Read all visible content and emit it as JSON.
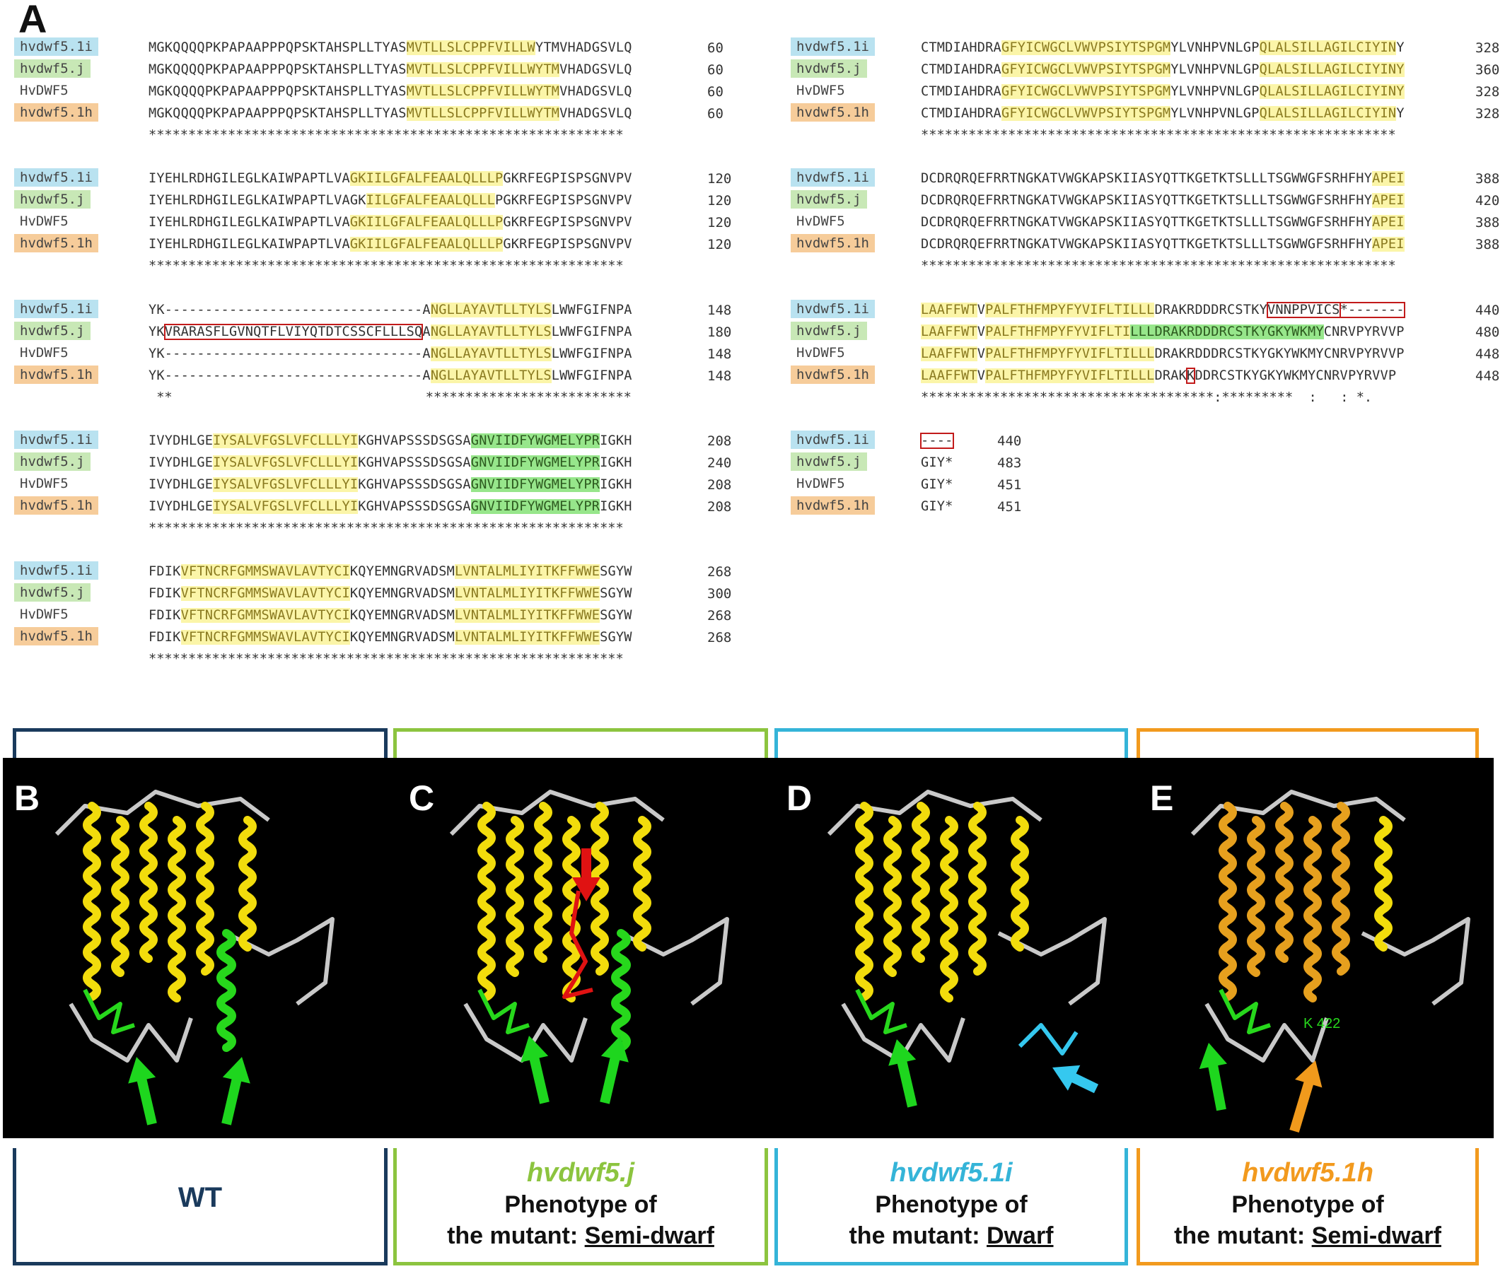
{
  "panel_letters": {
    "a": "A",
    "b": "B",
    "c": "C",
    "d": "D",
    "e": "E"
  },
  "left_blocks": [
    {
      "rows": [
        {
          "label": "hvdwf5.1i",
          "seq": [
            [
              "MGKQQQQPKPAPAAPPPQPSKTAHSPLLTYAS",
              ""
            ],
            [
              "MVTLLSLCPPFVILLW",
              "hy"
            ],
            [
              "YTMVHADGSVLQ",
              ""
            ]
          ],
          "num": "60"
        },
        {
          "label": "hvdwf5.j",
          "seq": [
            [
              "MGKQQQQPKPAPAAPPPQPSKTAHSPLLTYAS",
              ""
            ],
            [
              "MVTLLSLCPPFVILLWYTM",
              "hy"
            ],
            [
              "VHADGSVLQ",
              ""
            ]
          ],
          "num": "60"
        },
        {
          "label": "HvDWF5",
          "seq": [
            [
              "MGKQQQQPKPAPAAPPPQPSKTAHSPLLTYAS",
              ""
            ],
            [
              "MVTLLSLCPPFVILLWYTM",
              "hy"
            ],
            [
              "VHADGSVLQ",
              ""
            ]
          ],
          "num": "60"
        },
        {
          "label": "hvdwf5.1h",
          "seq": [
            [
              "MGKQQQQPKPAPAAPPPQPSKTAHSPLLTYAS",
              ""
            ],
            [
              "MVTLLSLCPPFVILLWYTM",
              "hy"
            ],
            [
              "VHADGSVLQ",
              ""
            ]
          ],
          "num": "60"
        }
      ],
      "cons": "************************************************************"
    },
    {
      "rows": [
        {
          "label": "hvdwf5.1i",
          "seq": [
            [
              "IYEHLRDHGILEGLKAIWPAPTLVA",
              ""
            ],
            [
              "GKIILGFALFEAALQLLLP",
              "hy"
            ],
            [
              "GKRFEGPISPSGNVPV",
              ""
            ]
          ],
          "num": "120"
        },
        {
          "label": "hvdwf5.j",
          "seq": [
            [
              "IYEHLRDHGILEGLKAIWPAPTLVAGK",
              ""
            ],
            [
              "IILGFALFEAALQLLL",
              "hy"
            ],
            [
              "PGKRFEGPISPSGNVPV",
              ""
            ]
          ],
          "num": "120"
        },
        {
          "label": "HvDWF5",
          "seq": [
            [
              "IYEHLRDHGILEGLKAIWPAPTLVA",
              ""
            ],
            [
              "GKIILGFALFEAALQLLLP",
              "hy"
            ],
            [
              "GKRFEGPISPSGNVPV",
              ""
            ]
          ],
          "num": "120"
        },
        {
          "label": "hvdwf5.1h",
          "seq": [
            [
              "IYEHLRDHGILEGLKAIWPAPTLVA",
              ""
            ],
            [
              "GKIILGFALFEAALQLLLP",
              "hy"
            ],
            [
              "GKRFEGPISPSGNVPV",
              ""
            ]
          ],
          "num": "120"
        }
      ],
      "cons": "************************************************************"
    },
    {
      "rows": [
        {
          "label": "hvdwf5.1i",
          "seq": [
            [
              "YK--------------------------------A",
              ""
            ],
            [
              "NGLLAYAVTLLTYLS",
              "hy"
            ],
            [
              "LWWFGIFNPA",
              ""
            ]
          ],
          "num": "148"
        },
        {
          "label": "hvdwf5.j",
          "seq": [
            [
              "YK",
              ""
            ],
            [
              "VRARASFLGVNQTFLVIYQTDTCSSCFLLLSQ",
              "boxr"
            ],
            [
              "A",
              ""
            ],
            [
              "NGLLAYAVTLLTYLS",
              "hy"
            ],
            [
              "LWWFGIFNPA",
              ""
            ]
          ],
          "num": "180"
        },
        {
          "label": "HvDWF5",
          "seq": [
            [
              "YK--------------------------------A",
              ""
            ],
            [
              "NGLLAYAVTLLTYLS",
              "hy"
            ],
            [
              "LWWFGIFNPA",
              ""
            ]
          ],
          "num": "148"
        },
        {
          "label": "hvdwf5.1h",
          "seq": [
            [
              "YK--------------------------------A",
              ""
            ],
            [
              "NGLLAYAVTLLTYLS",
              "hy"
            ],
            [
              "LWWFGIFNPA",
              ""
            ]
          ],
          "num": "148"
        }
      ],
      "cons": " **                                **************************"
    },
    {
      "rows": [
        {
          "label": "hvdwf5.1i",
          "seq": [
            [
              "IVYDHLGE",
              ""
            ],
            [
              "IYSALVFGSLVFCLLLYI",
              "hy"
            ],
            [
              "KGHVAPSSSDSGSA",
              ""
            ],
            [
              "GNVIIDFYWGMELYPR",
              "hg"
            ],
            [
              "IGKH",
              ""
            ]
          ],
          "num": "208"
        },
        {
          "label": "hvdwf5.j",
          "seq": [
            [
              "IVYDHLGE",
              ""
            ],
            [
              "IYSALVFGSLVFCLLLYI",
              "hy"
            ],
            [
              "KGHVAPSSSDSGSA",
              ""
            ],
            [
              "GNVIIDFYWGMELYPR",
              "hg"
            ],
            [
              "IGKH",
              ""
            ]
          ],
          "num": "240"
        },
        {
          "label": "HvDWF5",
          "seq": [
            [
              "IVYDHLGE",
              ""
            ],
            [
              "IYSALVFGSLVFCLLLYI",
              "hy"
            ],
            [
              "KGHVAPSSSDSGSA",
              ""
            ],
            [
              "GNVIIDFYWGMELYPR",
              "hg"
            ],
            [
              "IGKH",
              ""
            ]
          ],
          "num": "208"
        },
        {
          "label": "hvdwf5.1h",
          "seq": [
            [
              "IVYDHLGE",
              ""
            ],
            [
              "IYSALVFGSLVFCLLLYI",
              "hy"
            ],
            [
              "KGHVAPSSSDSGSA",
              ""
            ],
            [
              "GNVIIDFYWGMELYPR",
              "hg"
            ],
            [
              "IGKH",
              ""
            ]
          ],
          "num": "208"
        }
      ],
      "cons": "************************************************************"
    },
    {
      "rows": [
        {
          "label": "hvdwf5.1i",
          "seq": [
            [
              "FDIK",
              ""
            ],
            [
              "VFTNCRFGMMSWAVLAVTYCI",
              "hy"
            ],
            [
              "KQYEMNGRVADSM",
              ""
            ],
            [
              "LVNTALMLIYITKFFWWE",
              "hy"
            ],
            [
              "SGYW",
              ""
            ]
          ],
          "num": "268"
        },
        {
          "label": "hvdwf5.j",
          "seq": [
            [
              "FDIK",
              ""
            ],
            [
              "VFTNCRFGMMSWAVLAVTYCI",
              "hy"
            ],
            [
              "KQYEMNGRVADSM",
              ""
            ],
            [
              "LVNTALMLIYITKFFWWE",
              "hy"
            ],
            [
              "SGYW",
              ""
            ]
          ],
          "num": "300"
        },
        {
          "label": "HvDWF5",
          "seq": [
            [
              "FDIK",
              ""
            ],
            [
              "VFTNCRFGMMSWAVLAVTYCI",
              "hy"
            ],
            [
              "KQYEMNGRVADSM",
              ""
            ],
            [
              "LVNTALMLIYITKFFWWE",
              "hy"
            ],
            [
              "SGYW",
              ""
            ]
          ],
          "num": "268"
        },
        {
          "label": "hvdwf5.1h",
          "seq": [
            [
              "FDIK",
              ""
            ],
            [
              "VFTNCRFGMMSWAVLAVTYCI",
              "hy"
            ],
            [
              "KQYEMNGRVADSM",
              ""
            ],
            [
              "LVNTALMLIYITKFFWWE",
              "hy"
            ],
            [
              "SGYW",
              ""
            ]
          ],
          "num": "268"
        }
      ],
      "cons": "************************************************************"
    }
  ],
  "right_blocks": [
    {
      "rows": [
        {
          "label": "hvdwf5.1i",
          "seq": [
            [
              "CTMDIAHDRA",
              ""
            ],
            [
              "GFYICWGCLVWVPSIYTSPGM",
              "hy"
            ],
            [
              "YLVNHPVNLGP",
              ""
            ],
            [
              "QLALSILLAGILCIYIN",
              "hy"
            ],
            [
              "Y",
              ""
            ]
          ],
          "num": "328"
        },
        {
          "label": "hvdwf5.j",
          "seq": [
            [
              "CTMDIAHDRA",
              ""
            ],
            [
              "GFYICWGCLVWVPSIYTSPGM",
              "hy"
            ],
            [
              "YLVNHPVNLGP",
              ""
            ],
            [
              "QLALSILLAGILCIYINY",
              "hy"
            ]
          ],
          "num": "360"
        },
        {
          "label": "HvDWF5",
          "seq": [
            [
              "CTMDIAHDRA",
              ""
            ],
            [
              "GFYICWGCLVWVPSIYTSPGM",
              "hy"
            ],
            [
              "YLVNHPVNLGP",
              ""
            ],
            [
              "QLALSILLAGILCIYINY",
              "hy"
            ]
          ],
          "num": "328"
        },
        {
          "label": "hvdwf5.1h",
          "seq": [
            [
              "CTMDIAHDRA",
              ""
            ],
            [
              "GFYICWGCLVWVPSIYTSPGM",
              "hy"
            ],
            [
              "YLVNHPVNLGP",
              ""
            ],
            [
              "QLALSILLAGILCIYIN",
              "hy"
            ],
            [
              "Y",
              ""
            ]
          ],
          "num": "328"
        }
      ],
      "cons": "************************************************************"
    },
    {
      "rows": [
        {
          "label": "hvdwf5.1i",
          "seq": [
            [
              "DCDRQRQEFRRTNGKATVWGKAPSKIIASYQTTKGETKTSLLLTSGWWGFSRHFHY",
              ""
            ],
            [
              "APEI",
              "hy"
            ]
          ],
          "num": "388"
        },
        {
          "label": "hvdwf5.j",
          "seq": [
            [
              "DCDRQRQEFRRTNGKATVWGKAPSKIIASYQTTKGETKTSLLLTSGWWGFSRHFHY",
              ""
            ],
            [
              "APEI",
              "hy"
            ]
          ],
          "num": "420"
        },
        {
          "label": "HvDWF5",
          "seq": [
            [
              "DCDRQRQEFRRTNGKATVWGKAPSKIIASYQTTKGETKTSLLLTSGWWGFSRHFHY",
              ""
            ],
            [
              "APEI",
              "hy"
            ]
          ],
          "num": "388"
        },
        {
          "label": "hvdwf5.1h",
          "seq": [
            [
              "DCDRQRQEFRRTNGKATVWGKAPSKIIASYQTTKGETKTSLLLTSGWWGFSRHFHY",
              ""
            ],
            [
              "APEI",
              "hy"
            ]
          ],
          "num": "388"
        }
      ],
      "cons": "************************************************************"
    },
    {
      "rows": [
        {
          "label": "hvdwf5.1i",
          "seq": [
            [
              "LAAFFWT",
              "hy"
            ],
            [
              "V",
              ""
            ],
            [
              "PALFTHFMPYFYVIFLTILLL",
              "hy"
            ],
            [
              "DRAKRDDDRCSTKY",
              ""
            ],
            [
              "VNNPPVICS",
              "boxr"
            ],
            [
              "*-------",
              "boxr"
            ]
          ],
          "num": "440"
        },
        {
          "label": "hvdwf5.j",
          "seq": [
            [
              "LAAFFWT",
              "hy"
            ],
            [
              "V",
              ""
            ],
            [
              "PALFTHFMPYFYVIFLTI",
              "hy"
            ],
            [
              "LLLDRAKRDDDRCSTKYGKYWKMY",
              "hg"
            ],
            [
              "CNRVPYRVVP",
              ""
            ]
          ],
          "num": "480"
        },
        {
          "label": "HvDWF5",
          "seq": [
            [
              "LAAFFWT",
              "hy"
            ],
            [
              "V",
              ""
            ],
            [
              "PALFTHFMPYFYVIFLTILLL",
              "hy"
            ],
            [
              "DRAKRDDDRCSTKYGKYWKMYCNRVPYRVVP",
              ""
            ]
          ],
          "num": "448"
        },
        {
          "label": "hvdwf5.1h",
          "seq": [
            [
              "LAAFFWT",
              "hy"
            ],
            [
              "V",
              ""
            ],
            [
              "PALFTHFMPYFYVIFLTILLL",
              "hy"
            ],
            [
              "DRAK",
              ""
            ],
            [
              "K",
              "boxr"
            ],
            [
              "DDRCSTKYGKYWKMYCNRVPYRVVP",
              ""
            ]
          ],
          "num": "448"
        }
      ],
      "cons": "*************************************:*********  :   : *."
    },
    {
      "rows": [
        {
          "label": "hvdwf5.1i",
          "seq": [
            [
              "----",
              "boxr"
            ]
          ],
          "num": "440"
        },
        {
          "label": "hvdwf5.j",
          "seq": [
            [
              "GIY*",
              ""
            ]
          ],
          "num": "483"
        },
        {
          "label": "HvDWF5",
          "seq": [
            [
              "GIY*",
              ""
            ]
          ],
          "num": "451"
        },
        {
          "label": "hvdwf5.1h",
          "seq": [
            [
              "GIY*",
              ""
            ]
          ],
          "num": "451"
        }
      ],
      "cons": ""
    }
  ],
  "captions": {
    "wt": "WT",
    "j_name": "hvdwf5.j",
    "i_name": "hvdwf5.1i",
    "h_name": "hvdwf5.1h",
    "phenotype_line": "Phenotype of",
    "mutant_prefix": "the mutant: ",
    "semi_dwarf": "Semi-dwarf",
    "dwarf": "Dwarf"
  },
  "structure_label_k": "K 422",
  "colors": {
    "wt": "#1a3a5c",
    "j": "#8cc43f",
    "i": "#35b4d8",
    "h": "#f29a1e",
    "helix_yellow": "#f2dc0c",
    "helix_green": "#27d81c",
    "helix_orange": "#e6a01e",
    "coil_gray": "#c9c9c9",
    "arrow_green": "#1ed61e",
    "arrow_red": "#e01212",
    "arrow_cyan": "#35c8ef",
    "arrow_orange": "#f19a1c"
  }
}
